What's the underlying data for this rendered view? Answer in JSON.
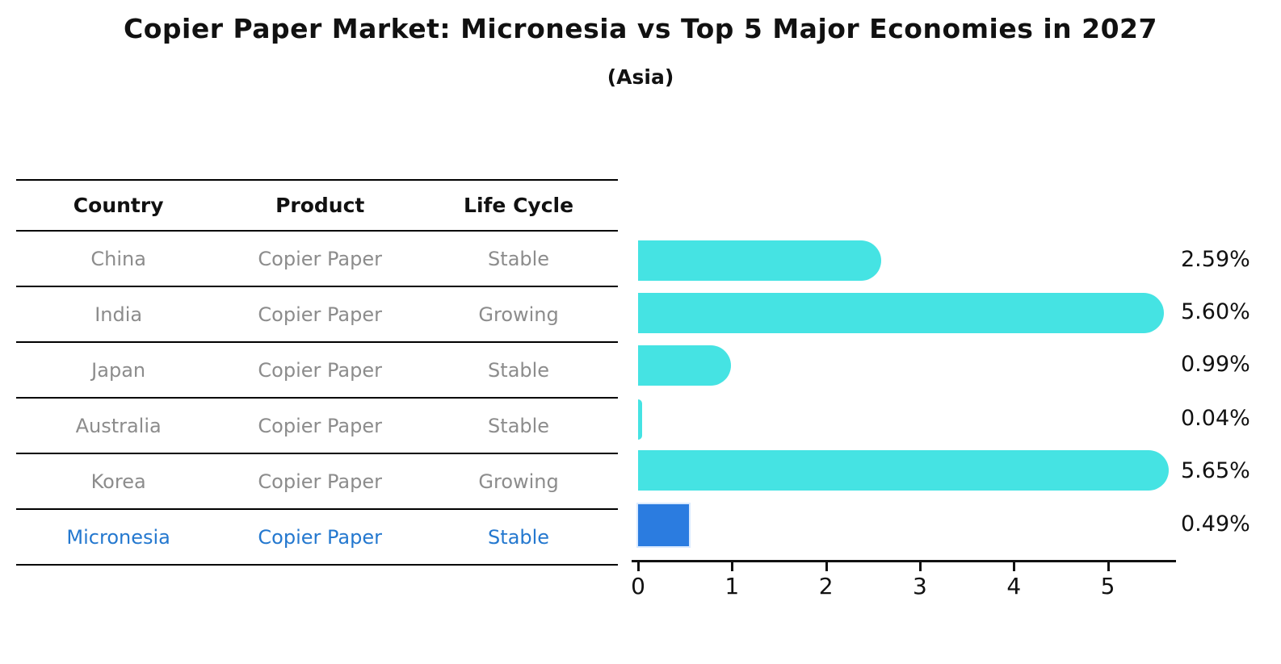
{
  "title": "Copier Paper Market: Micronesia vs Top 5 Major Economies in 2027",
  "subtitle": "(Asia)",
  "table": {
    "headers": [
      "Country",
      "Product",
      "Life Cycle"
    ],
    "rows": [
      {
        "country": "China",
        "product": "Copier Paper",
        "life_cycle": "Stable",
        "highlight": false
      },
      {
        "country": "India",
        "product": "Copier Paper",
        "life_cycle": "Growing",
        "highlight": false
      },
      {
        "country": "Japan",
        "product": "Copier Paper",
        "life_cycle": "Stable",
        "highlight": false
      },
      {
        "country": "Australia",
        "product": "Copier Paper",
        "life_cycle": "Stable",
        "highlight": false
      },
      {
        "country": "Korea",
        "product": "Copier Paper",
        "life_cycle": "Growing",
        "highlight": false
      },
      {
        "country": "Micronesia",
        "product": "Copier Paper",
        "life_cycle": "Stable",
        "highlight": true
      }
    ]
  },
  "chart_data": {
    "type": "bar",
    "orientation": "horizontal",
    "title": "Copier Paper Market: Micronesia vs Top 5 Major Economies in 2027",
    "subtitle": "(Asia)",
    "categories": [
      "China",
      "India",
      "Japan",
      "Australia",
      "Korea",
      "Micronesia"
    ],
    "values": [
      2.59,
      5.6,
      0.99,
      0.04,
      5.65,
      0.49
    ],
    "labels": [
      "2.59%",
      "5.60%",
      "0.99%",
      "0.04%",
      "5.65%",
      "0.49%"
    ],
    "xticks": [
      0,
      1,
      2,
      3,
      4,
      5
    ],
    "xlim": [
      0,
      5.7
    ],
    "xlabel": "",
    "ylabel": "",
    "grid": false,
    "legend": false,
    "highlight_index": 5,
    "colors": {
      "bar": "#45E3E3",
      "highlight_bar": "#2B7CE0",
      "highlight_text": "#2478CF",
      "table_text": "#8C8C8C",
      "header_text": "#111111",
      "axis": "#111111"
    }
  }
}
